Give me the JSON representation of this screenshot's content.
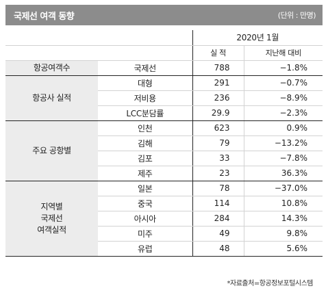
{
  "header": {
    "title": "국제선 여객 동향",
    "unit": "(단위 : 만명)"
  },
  "table": {
    "period": "2020년 1월",
    "col_actual": "실 적",
    "col_yoy": "지난해 대비",
    "groups": [
      {
        "name": "항공여객수",
        "rows": [
          {
            "label": "국제선",
            "value": "788",
            "change": "−1.8%"
          }
        ]
      },
      {
        "name": "항공사 실적",
        "rows": [
          {
            "label": "대형",
            "value": "291",
            "change": "−0.7%"
          },
          {
            "label": "저비용",
            "value": "236",
            "change": "−8.9%"
          },
          {
            "label": "LCC분담률",
            "value": "29.9",
            "change": "−2.3%"
          }
        ]
      },
      {
        "name": "주요 공항별",
        "rows": [
          {
            "label": "인천",
            "value": "623",
            "change": "0.9%"
          },
          {
            "label": "김해",
            "value": "79",
            "change": "−13.2%"
          },
          {
            "label": "김포",
            "value": "33",
            "change": "−7.8%"
          },
          {
            "label": "제주",
            "value": "23",
            "change": "36.3%"
          }
        ]
      },
      {
        "name_lines": [
          "지역별",
          "국제선",
          "여객실적"
        ],
        "rows": [
          {
            "label": "일본",
            "value": "78",
            "change": "−37.0%"
          },
          {
            "label": "중국",
            "value": "114",
            "change": "10.8%"
          },
          {
            "label": "아시아",
            "value": "284",
            "change": "14.3%"
          },
          {
            "label": "미주",
            "value": "49",
            "change": "9.8%"
          },
          {
            "label": "유럽",
            "value": "48",
            "change": "5.6%"
          }
        ]
      }
    ]
  },
  "source": "*자료출처=항공정보포털시스템"
}
